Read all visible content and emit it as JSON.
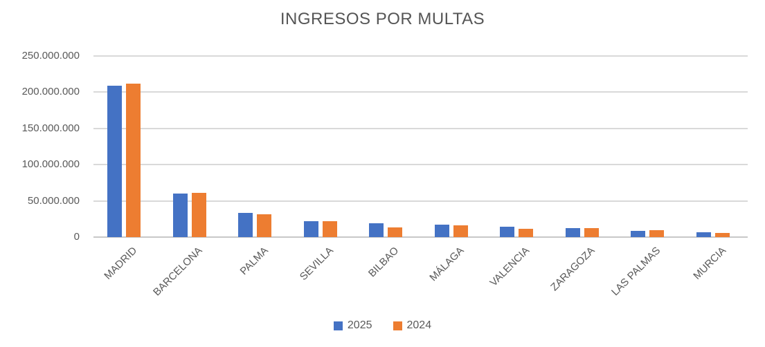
{
  "chart_data": {
    "type": "bar",
    "title": "INGRESOS POR MULTAS",
    "xlabel": "",
    "ylabel": "",
    "categories": [
      "MADRID",
      "BARCELONA",
      "PALMA",
      "SEVILLA",
      "BILBAO",
      "MÁLAGA",
      "VALENCIA",
      "ZARAGOZA",
      "LAS PALMAS",
      "MURCIA"
    ],
    "series": [
      {
        "name": "2025",
        "color": "#4472C4",
        "values": [
          209000000,
          60000000,
          33000000,
          22000000,
          19500000,
          17000000,
          14500000,
          12000000,
          9000000,
          7000000
        ]
      },
      {
        "name": "2024",
        "color": "#ED7D31",
        "values": [
          212000000,
          61000000,
          31500000,
          21500000,
          13000000,
          16000000,
          11000000,
          12500000,
          10000000,
          6000000
        ]
      }
    ],
    "ylim": [
      0,
      250000000
    ],
    "y_ticks": [
      {
        "value": 0,
        "label": "0"
      },
      {
        "value": 50000000,
        "label": "50.000.000"
      },
      {
        "value": 100000000,
        "label": "100.000.000"
      },
      {
        "value": 150000000,
        "label": "150.000.000"
      },
      {
        "value": 200000000,
        "label": "200.000.000"
      },
      {
        "value": 250000000,
        "label": "250.000.000"
      }
    ],
    "grid": true,
    "legend_position": "bottom"
  },
  "styles": {
    "background": "#FFFFFF",
    "title_color": "#555555",
    "text_color": "#595959",
    "gridline_color": "#D9D9D9",
    "axis_line_color": "#C8C8C8"
  }
}
